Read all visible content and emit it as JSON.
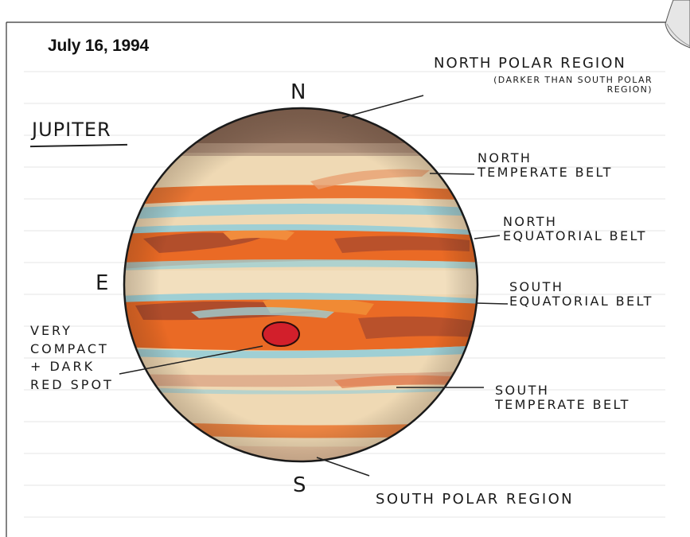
{
  "header": {
    "date": "July 16, 1994"
  },
  "title": "JUPITER",
  "directions": {
    "north": "N",
    "south": "S",
    "east": "E"
  },
  "labels": {
    "north_polar_region": "NORTH POLAR REGION",
    "north_polar_note": "(DARKER THAN SOUTH POLAR\nREGION)",
    "north_temperate_belt": "NORTH\nTEMPERATE BELT",
    "north_equatorial_belt": "NORTH\nEQUATORIAL BELT",
    "south_equatorial_belt": "SOUTH\nEQUATORIAL BELT",
    "red_spot": "VERY\nCOMPACT\n+ DARK\nRED SPOT",
    "south_temperate_belt": "SOUTH\nTEMPERATE BELT",
    "south_polar_region": "SOUTH POLAR REGION"
  },
  "colors": {
    "planet_cream": "#efd9b4",
    "belt_orange": "#ea6a25",
    "belt_brown": "#a4472d",
    "band_blue": "#9fcfd4",
    "polar_brown": "#8a6a57",
    "red_spot": "#d21f2b"
  }
}
